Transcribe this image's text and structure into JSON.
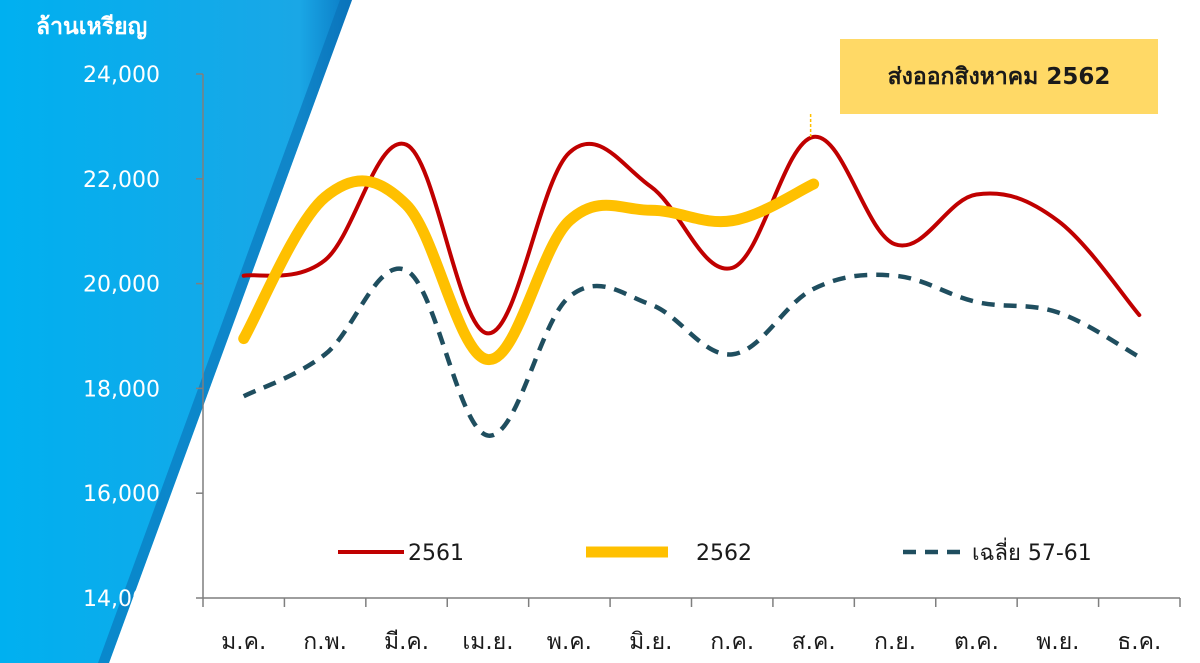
{
  "chart_data": {
    "type": "line",
    "ylabel": "ล้านเหรียญ",
    "ylim": [
      14000,
      24000
    ],
    "yticks": [
      "24,000",
      "22,000",
      "20,000",
      "18,000",
      "16,000",
      "14,000"
    ],
    "ytick_values": [
      24000,
      22000,
      20000,
      18000,
      16000,
      14000
    ],
    "categories": [
      "ม.ค.",
      "ก.พ.",
      "มี.ค.",
      "เม.ย.",
      "พ.ค.",
      "มิ.ย.",
      "ก.ค.",
      "ส.ค.",
      "ก.ย.",
      "ต.ค.",
      "พ.ย.",
      "ธ.ค."
    ],
    "series": [
      {
        "name": "2561",
        "color": "#c00000",
        "style": "solid",
        "values": [
          20150,
          20450,
          22650,
          19050,
          22500,
          21850,
          20300,
          22800,
          20750,
          21700,
          21200,
          19400
        ]
      },
      {
        "name": "2562",
        "color": "#ffc000",
        "style": "thick",
        "values": [
          18950,
          21650,
          21500,
          18550,
          21200,
          21400,
          21200,
          21900,
          null,
          null,
          null,
          null
        ]
      },
      {
        "name": "เฉลี่ย 57-61",
        "color": "#1f4e5f",
        "style": "dashed",
        "values": [
          17850,
          18650,
          20250,
          17100,
          19750,
          19600,
          18650,
          19900,
          20150,
          19650,
          19450,
          18600
        ]
      }
    ],
    "annotation": {
      "text": "ส่งออกสิงหาคม 2562",
      "category": "ส.ค.",
      "color": "#ffd966"
    },
    "legend_position": "bottom-inside",
    "grid": false
  }
}
